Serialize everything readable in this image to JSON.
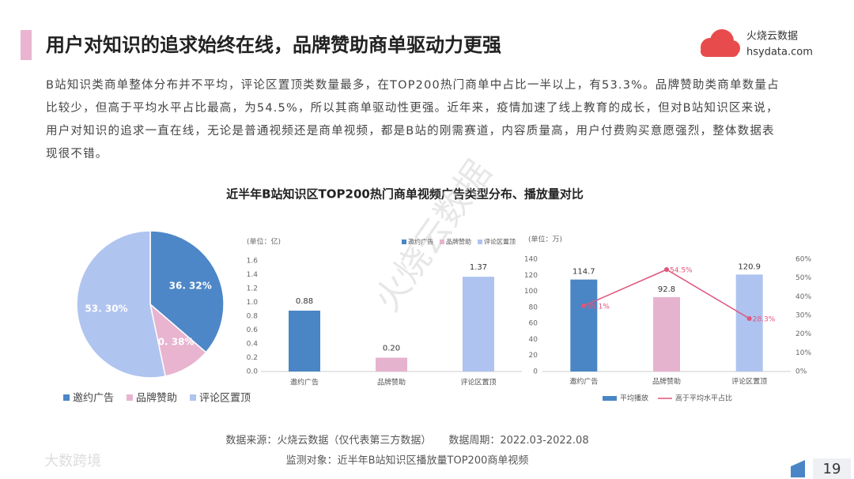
{
  "header": {
    "title": "用户对知识的追求始终在线，品牌赞助商单驱动力更强",
    "logo_name": "火烧云数据",
    "logo_url": "hsydata.com"
  },
  "paragraph": "B站知识类商单整体分布并不平均，评论区置顶类数量最多，在TOP200热门商单中占比一半以上，有53.3%。品牌赞助类商单数量占比较少，但高于平均水平占比最高，为54.5%，所以其商单驱动性更强。近年来，疫情加速了线上教育的成长，但对B站知识区来说，用户对知识的追求一直在线，无论是普通视频还是商单视频，都是B站的刚需赛道，内容质量高，用户付费购买意愿强烈，整体数据表现很不错。",
  "charts_title": "近半年B站知识区TOP200热门商单视频广告类型分布、播放量对比",
  "watermark": "火烧云数据",
  "chart_data": [
    {
      "type": "pie",
      "categories": [
        "邀约广告",
        "品牌赞助",
        "评论区置顶"
      ],
      "values": [
        36.32,
        10.38,
        53.3
      ],
      "value_labels": [
        "36. 32%",
        "10. 38%",
        "53. 30%"
      ],
      "colors": [
        "#4d87c7",
        "#e8b4d0",
        "#b0c4f0"
      ]
    },
    {
      "type": "bar",
      "unit": "(单位：亿)",
      "categories": [
        "邀约广告",
        "品牌赞助",
        "评论区置顶"
      ],
      "values": [
        0.88,
        0.2,
        1.37
      ],
      "value_labels": [
        "0.88",
        "0.20",
        "1.37"
      ],
      "colors": [
        "#4a86c5",
        "#e6b3cf",
        "#aec3ef"
      ],
      "ylim": [
        0,
        1.6
      ],
      "yticks": [
        {
          "value": 0,
          "label": "0.0"
        },
        0.2,
        0.4,
        0.6,
        0.8,
        {
          "value": 1,
          "label": "1.0"
        },
        1.2,
        1.4,
        1.6
      ]
    },
    {
      "type": "combo",
      "unit": "(单位：万)",
      "categories": [
        "邀约广告",
        "品牌赞助",
        "评论区置顶"
      ],
      "series": [
        {
          "name": "平均播放",
          "type": "bar",
          "values": [
            114.7,
            92.8,
            120.9
          ],
          "colors": [
            "#4a86c5",
            "#e6b3cf",
            "#aec3ef"
          ]
        },
        {
          "name": "高于平均水平占比",
          "type": "line",
          "axis": "y2",
          "values": [
            35.1,
            54.5,
            28.3
          ],
          "value_labels": [
            "35.1%",
            "54.5%",
            "28.3%"
          ],
          "color": "#e0557a"
        }
      ],
      "ylim": [
        0,
        140
      ],
      "yticks": [
        0,
        20,
        40,
        60,
        80,
        100,
        120,
        140
      ],
      "y2lim": [
        0,
        60
      ],
      "y2ticks": [
        {
          "value": 0,
          "label": "0%"
        },
        {
          "value": 10,
          "label": "10%"
        },
        {
          "value": 20,
          "label": "20%"
        },
        {
          "value": 30,
          "label": "30%"
        },
        {
          "value": 40,
          "label": "40%"
        },
        {
          "value": 50,
          "label": "50%"
        },
        {
          "value": 60,
          "label": "60%"
        }
      ]
    }
  ],
  "footer": {
    "source": "数据来源：火烧云数据（仅代表第三方数据）",
    "period": "数据周期：2022.03-2022.08",
    "monitor": "监测对象：近半年B站知识区播放量TOP200商单视频",
    "brand": "大数跨境",
    "page": "19"
  }
}
